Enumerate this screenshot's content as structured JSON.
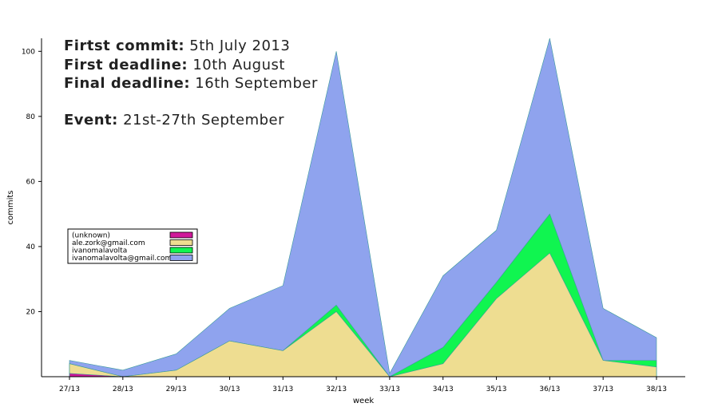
{
  "annotations": [
    {
      "label": "Firtst commit:",
      "value": " 5th July 2013"
    },
    {
      "label": "First deadline:",
      "value": " 10th August"
    },
    {
      "label": "Final deadline:",
      "value": " 16th September"
    },
    {
      "label": "Event:",
      "value": " 21st-27th September"
    }
  ],
  "chart_data": {
    "type": "area",
    "stacked": true,
    "categories": [
      "27/13",
      "28/13",
      "29/13",
      "30/13",
      "31/13",
      "32/13",
      "33/13",
      "34/13",
      "35/13",
      "36/13",
      "37/13",
      "38/13"
    ],
    "xlabel": "week",
    "ylabel": "commits",
    "ylim": [
      0,
      104
    ],
    "yticks": [
      20,
      40,
      60,
      80,
      100
    ],
    "grid": false,
    "legend_position": "left",
    "series": [
      {
        "name": "(unknown)",
        "color": "#d0189a",
        "values": [
          1,
          0,
          0,
          0,
          0,
          0,
          0,
          0,
          0,
          0,
          0,
          0
        ]
      },
      {
        "name": "ale.zork@gmail.com",
        "color": "#eedd91",
        "values": [
          3,
          0,
          2,
          11,
          8,
          20,
          0,
          4,
          24,
          38,
          5,
          3
        ]
      },
      {
        "name": "ivanomalavolta",
        "color": "#10f550",
        "values": [
          0,
          0,
          0,
          0,
          0,
          2,
          0,
          5,
          5,
          12,
          0,
          2
        ]
      },
      {
        "name": "ivanomalavolta@gmail.com",
        "color": "#8fa3ee",
        "values": [
          1,
          2,
          5,
          10,
          20,
          78,
          1,
          22,
          16,
          54,
          16,
          7
        ]
      }
    ]
  }
}
